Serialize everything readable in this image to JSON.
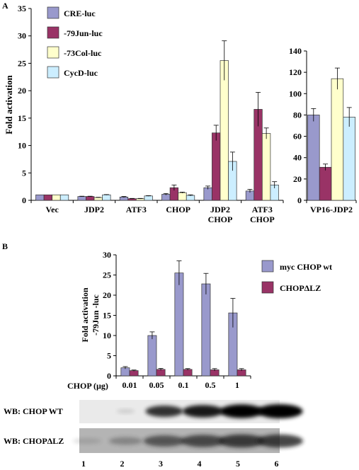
{
  "panel_a_label": "A",
  "panel_b_label": "B",
  "colors": {
    "cre": "#9999cc",
    "jun": "#993366",
    "col": "#ffffcc",
    "cycd": "#cceeff",
    "myc_wt": "#9999cc",
    "dlz": "#993366"
  },
  "chart_data": [
    {
      "id": "a-main",
      "type": "bar",
      "ylabel": "Fold activation",
      "ylim": [
        0,
        35
      ],
      "yticks": [
        0,
        5,
        10,
        15,
        20,
        25,
        30,
        35
      ],
      "categories": [
        "Vec",
        "JDP2",
        "ATF3",
        "CHOP",
        "JDP2\nCHOP",
        "ATF3\nCHOP"
      ],
      "legend": "top-left",
      "series": [
        {
          "name": "CRE-luc",
          "color_key": "cre",
          "values": [
            1.0,
            0.7,
            0.6,
            1.1,
            2.3,
            1.7
          ],
          "errors": [
            0,
            0.05,
            0.1,
            0.15,
            0.3,
            0.3
          ]
        },
        {
          "name": "-79Jun-luc",
          "color_key": "jun",
          "values": [
            1.0,
            0.7,
            0.3,
            2.3,
            12.3,
            16.6
          ],
          "errors": [
            0,
            0.05,
            0.05,
            0.5,
            1.4,
            3.1
          ]
        },
        {
          "name": "-73Col-luc",
          "color_key": "col",
          "values": [
            1.0,
            0.5,
            0.3,
            1.4,
            25.5,
            12.2
          ],
          "errors": [
            0,
            0.05,
            0.05,
            0.1,
            3.6,
            1.0
          ]
        },
        {
          "name": "CycD-luc",
          "color_key": "cycd",
          "values": [
            1.0,
            1.0,
            0.8,
            0.9,
            7.1,
            2.8
          ],
          "errors": [
            0,
            0.05,
            0.05,
            0.1,
            1.7,
            0.6
          ]
        }
      ]
    },
    {
      "id": "a-vp16",
      "type": "bar",
      "ylim": [
        0,
        140
      ],
      "yticks": [
        0,
        20,
        40,
        60,
        80,
        100,
        120,
        140
      ],
      "categories": [
        "VP16-JDP2"
      ],
      "series": [
        {
          "name": "CRE-luc",
          "color_key": "cre",
          "values": [
            80
          ],
          "errors": [
            6
          ]
        },
        {
          "name": "-79Jun-luc",
          "color_key": "jun",
          "values": [
            31
          ],
          "errors": [
            3
          ]
        },
        {
          "name": "-73Col-luc",
          "color_key": "col",
          "values": [
            114
          ],
          "errors": [
            10
          ]
        },
        {
          "name": "CycD-luc",
          "color_key": "cycd",
          "values": [
            78
          ],
          "errors": [
            9
          ]
        }
      ]
    },
    {
      "id": "b",
      "type": "bar",
      "ylabel": "Fold activation\n-79Jun -luc",
      "xlabel": "CHOP (µg)",
      "ylim": [
        0,
        30
      ],
      "yticks": [
        0,
        5,
        10,
        15,
        20,
        25,
        30
      ],
      "categories": [
        "0.01",
        "0.05",
        "0.1",
        "0.5",
        "1"
      ],
      "legend": "top-right",
      "series": [
        {
          "name": "myc CHOP wt",
          "color_key": "myc_wt",
          "values": [
            2.0,
            10.0,
            25.5,
            22.8,
            15.6
          ],
          "errors": [
            0.3,
            0.9,
            3.0,
            2.6,
            3.6
          ]
        },
        {
          "name": "CHOPΔLZ",
          "color_key": "dlz",
          "values": [
            1.3,
            1.6,
            1.6,
            1.5,
            1.5
          ],
          "errors": [
            0.15,
            0.25,
            0.2,
            0.3,
            0.3
          ]
        }
      ]
    }
  ],
  "blots": {
    "wt_label": "WB: CHOP WT",
    "dlz_label": "WB: CHOPΔLZ",
    "wt_intensity": [
      0.0,
      0.12,
      0.75,
      0.85,
      0.95,
      1.0
    ],
    "dlz_intensity": [
      0.15,
      0.35,
      0.7,
      0.8,
      0.9,
      0.9
    ],
    "lanes": [
      "1",
      "2",
      "3",
      "4",
      "5",
      "6"
    ]
  }
}
